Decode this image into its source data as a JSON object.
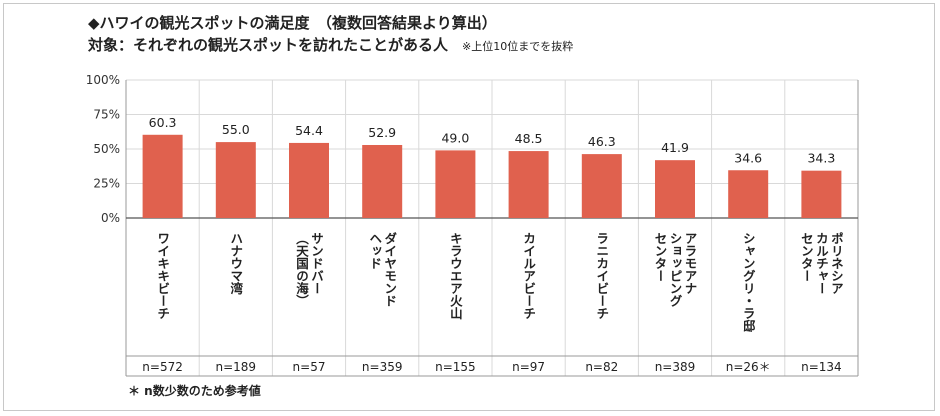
{
  "header": {
    "title": "◆ハワイの観光スポットの満足度　（複数回答結果より算出）",
    "subtitle": "対象：それぞれの観光スポットを訪れたことがある人",
    "note": "※上位10位までを抜粋"
  },
  "footnote": "＊ n数少数のため参考値",
  "colors": {
    "bar": "#e0614e",
    "grid": "#d9d9d9",
    "axis": "#999999"
  },
  "chart_data": {
    "type": "bar",
    "categories": [
      "ワイキキビーチ",
      "ハナウマ湾",
      "サンドバー（天国の海）",
      "ダイヤモンドヘッド",
      "キラウエア火山",
      "カイルアビーチ",
      "ラニカイビーチ",
      "アラモアナショッピングセンター",
      "シャングリ・ラ邸",
      "ポリネシアカルチャーセンター"
    ],
    "category_lines": [
      [
        "ワイキキビーチ"
      ],
      [
        "ハナウマ湾"
      ],
      [
        "サンドバー",
        "（天国の海）"
      ],
      [
        "ダイヤモンド",
        "ヘッド"
      ],
      [
        "キラウエア火山"
      ],
      [
        "カイルアビーチ"
      ],
      [
        "ラニカイビーチ"
      ],
      [
        "アラモアナ",
        "ショッピング",
        "センター"
      ],
      [
        "シャングリ・ラ邸"
      ],
      [
        "ポリネシア",
        "カルチャー",
        "センター"
      ]
    ],
    "values": [
      60.3,
      55.0,
      54.4,
      52.9,
      49.0,
      48.5,
      46.3,
      41.9,
      34.6,
      34.3
    ],
    "value_labels": [
      "60.3",
      "55.0",
      "54.4",
      "52.9",
      "49.0",
      "48.5",
      "46.3",
      "41.9",
      "34.6",
      "34.3"
    ],
    "n_labels": [
      "n=572",
      "n=189",
      "n=57",
      "n=359",
      "n=155",
      "n=97",
      "n=82",
      "n=389",
      "n=26＊",
      "n=134"
    ],
    "ylim": [
      0,
      100
    ],
    "yticks": [
      0,
      25,
      50,
      75,
      100
    ],
    "ytick_labels": [
      "0%",
      "25%",
      "50%",
      "75%",
      "100%"
    ],
    "grid": true
  }
}
